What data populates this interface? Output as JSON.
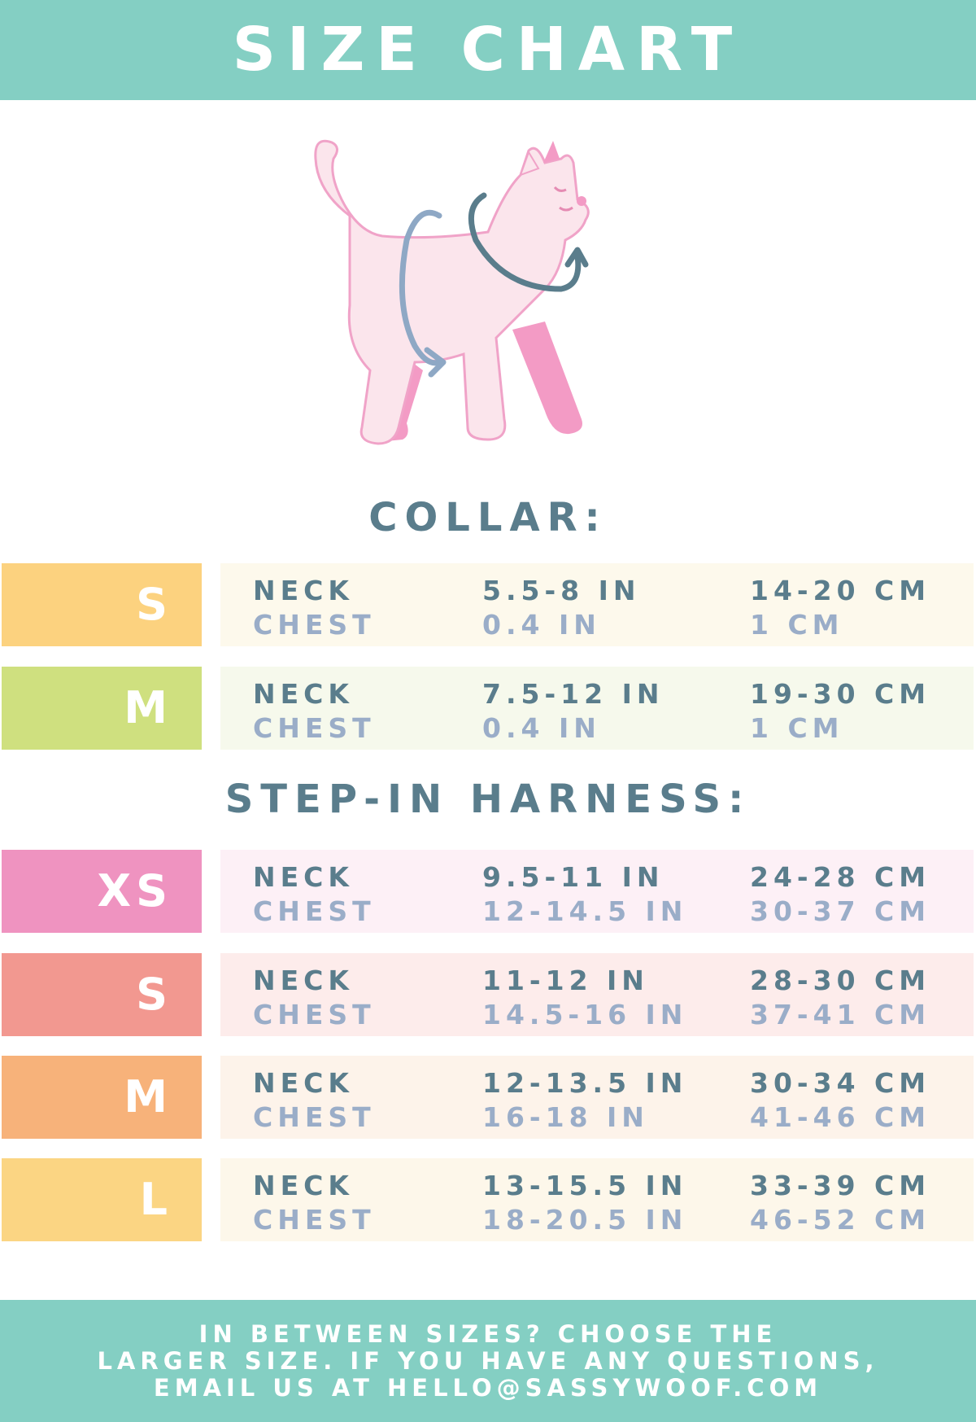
{
  "title": "SIZE CHART",
  "illustration": "cat-measurement-icon",
  "colors": {
    "teal": "#84cfc3",
    "neck_text": "#5a7d8c",
    "chest_text": "#9aadc8"
  },
  "collar": {
    "heading": "COLLAR:",
    "rows": [
      {
        "size": "S",
        "color": "#fcd27f",
        "bg": "#fdf9ec",
        "neck_label": "NECK",
        "neck_in": "5.5-8 IN",
        "neck_cm": "14-20 CM",
        "chest_label": "CHEST",
        "chest_in": "0.4 IN",
        "chest_cm": "1 CM"
      },
      {
        "size": "M",
        "color": "#cfe07f",
        "bg": "#f6f9ec",
        "neck_label": "NECK",
        "neck_in": "7.5-12 IN",
        "neck_cm": "19-30 CM",
        "chest_label": "CHEST",
        "chest_in": "0.4 IN",
        "chest_cm": "1 CM"
      }
    ]
  },
  "harness": {
    "heading": "STEP-IN HARNESS:",
    "rows": [
      {
        "size": "XS",
        "color": "#ef93c0",
        "bg": "#fdf0f6",
        "neck_label": "NECK",
        "neck_in": "9.5-11 IN",
        "neck_cm": "24-28 CM",
        "chest_label": "CHEST",
        "chest_in": "12-14.5 IN",
        "chest_cm": "30-37 CM"
      },
      {
        "size": "S",
        "color": "#f29890",
        "bg": "#fdeceb",
        "neck_label": "NECK",
        "neck_in": "11-12 IN",
        "neck_cm": "28-30 CM",
        "chest_label": "CHEST",
        "chest_in": "14.5-16 IN",
        "chest_cm": "37-41 CM"
      },
      {
        "size": "M",
        "color": "#f7b27a",
        "bg": "#fdf3ea",
        "neck_label": "NECK",
        "neck_in": "12-13.5 IN",
        "neck_cm": "30-34 CM",
        "chest_label": "CHEST",
        "chest_in": "16-18 IN",
        "chest_cm": "41-46 CM"
      },
      {
        "size": "L",
        "color": "#fbd583",
        "bg": "#fdf7ea",
        "neck_label": "NECK",
        "neck_in": "13-15.5 IN",
        "neck_cm": "33-39 CM",
        "chest_label": "CHEST",
        "chest_in": "18-20.5 IN",
        "chest_cm": "46-52 CM"
      }
    ]
  },
  "footer": {
    "lines": [
      "IN BETWEEN SIZES? CHOOSE THE",
      "LARGER SIZE. IF YOU HAVE ANY QUESTIONS,",
      "EMAIL US AT HELLO@SASSYWOOF.COM"
    ]
  }
}
